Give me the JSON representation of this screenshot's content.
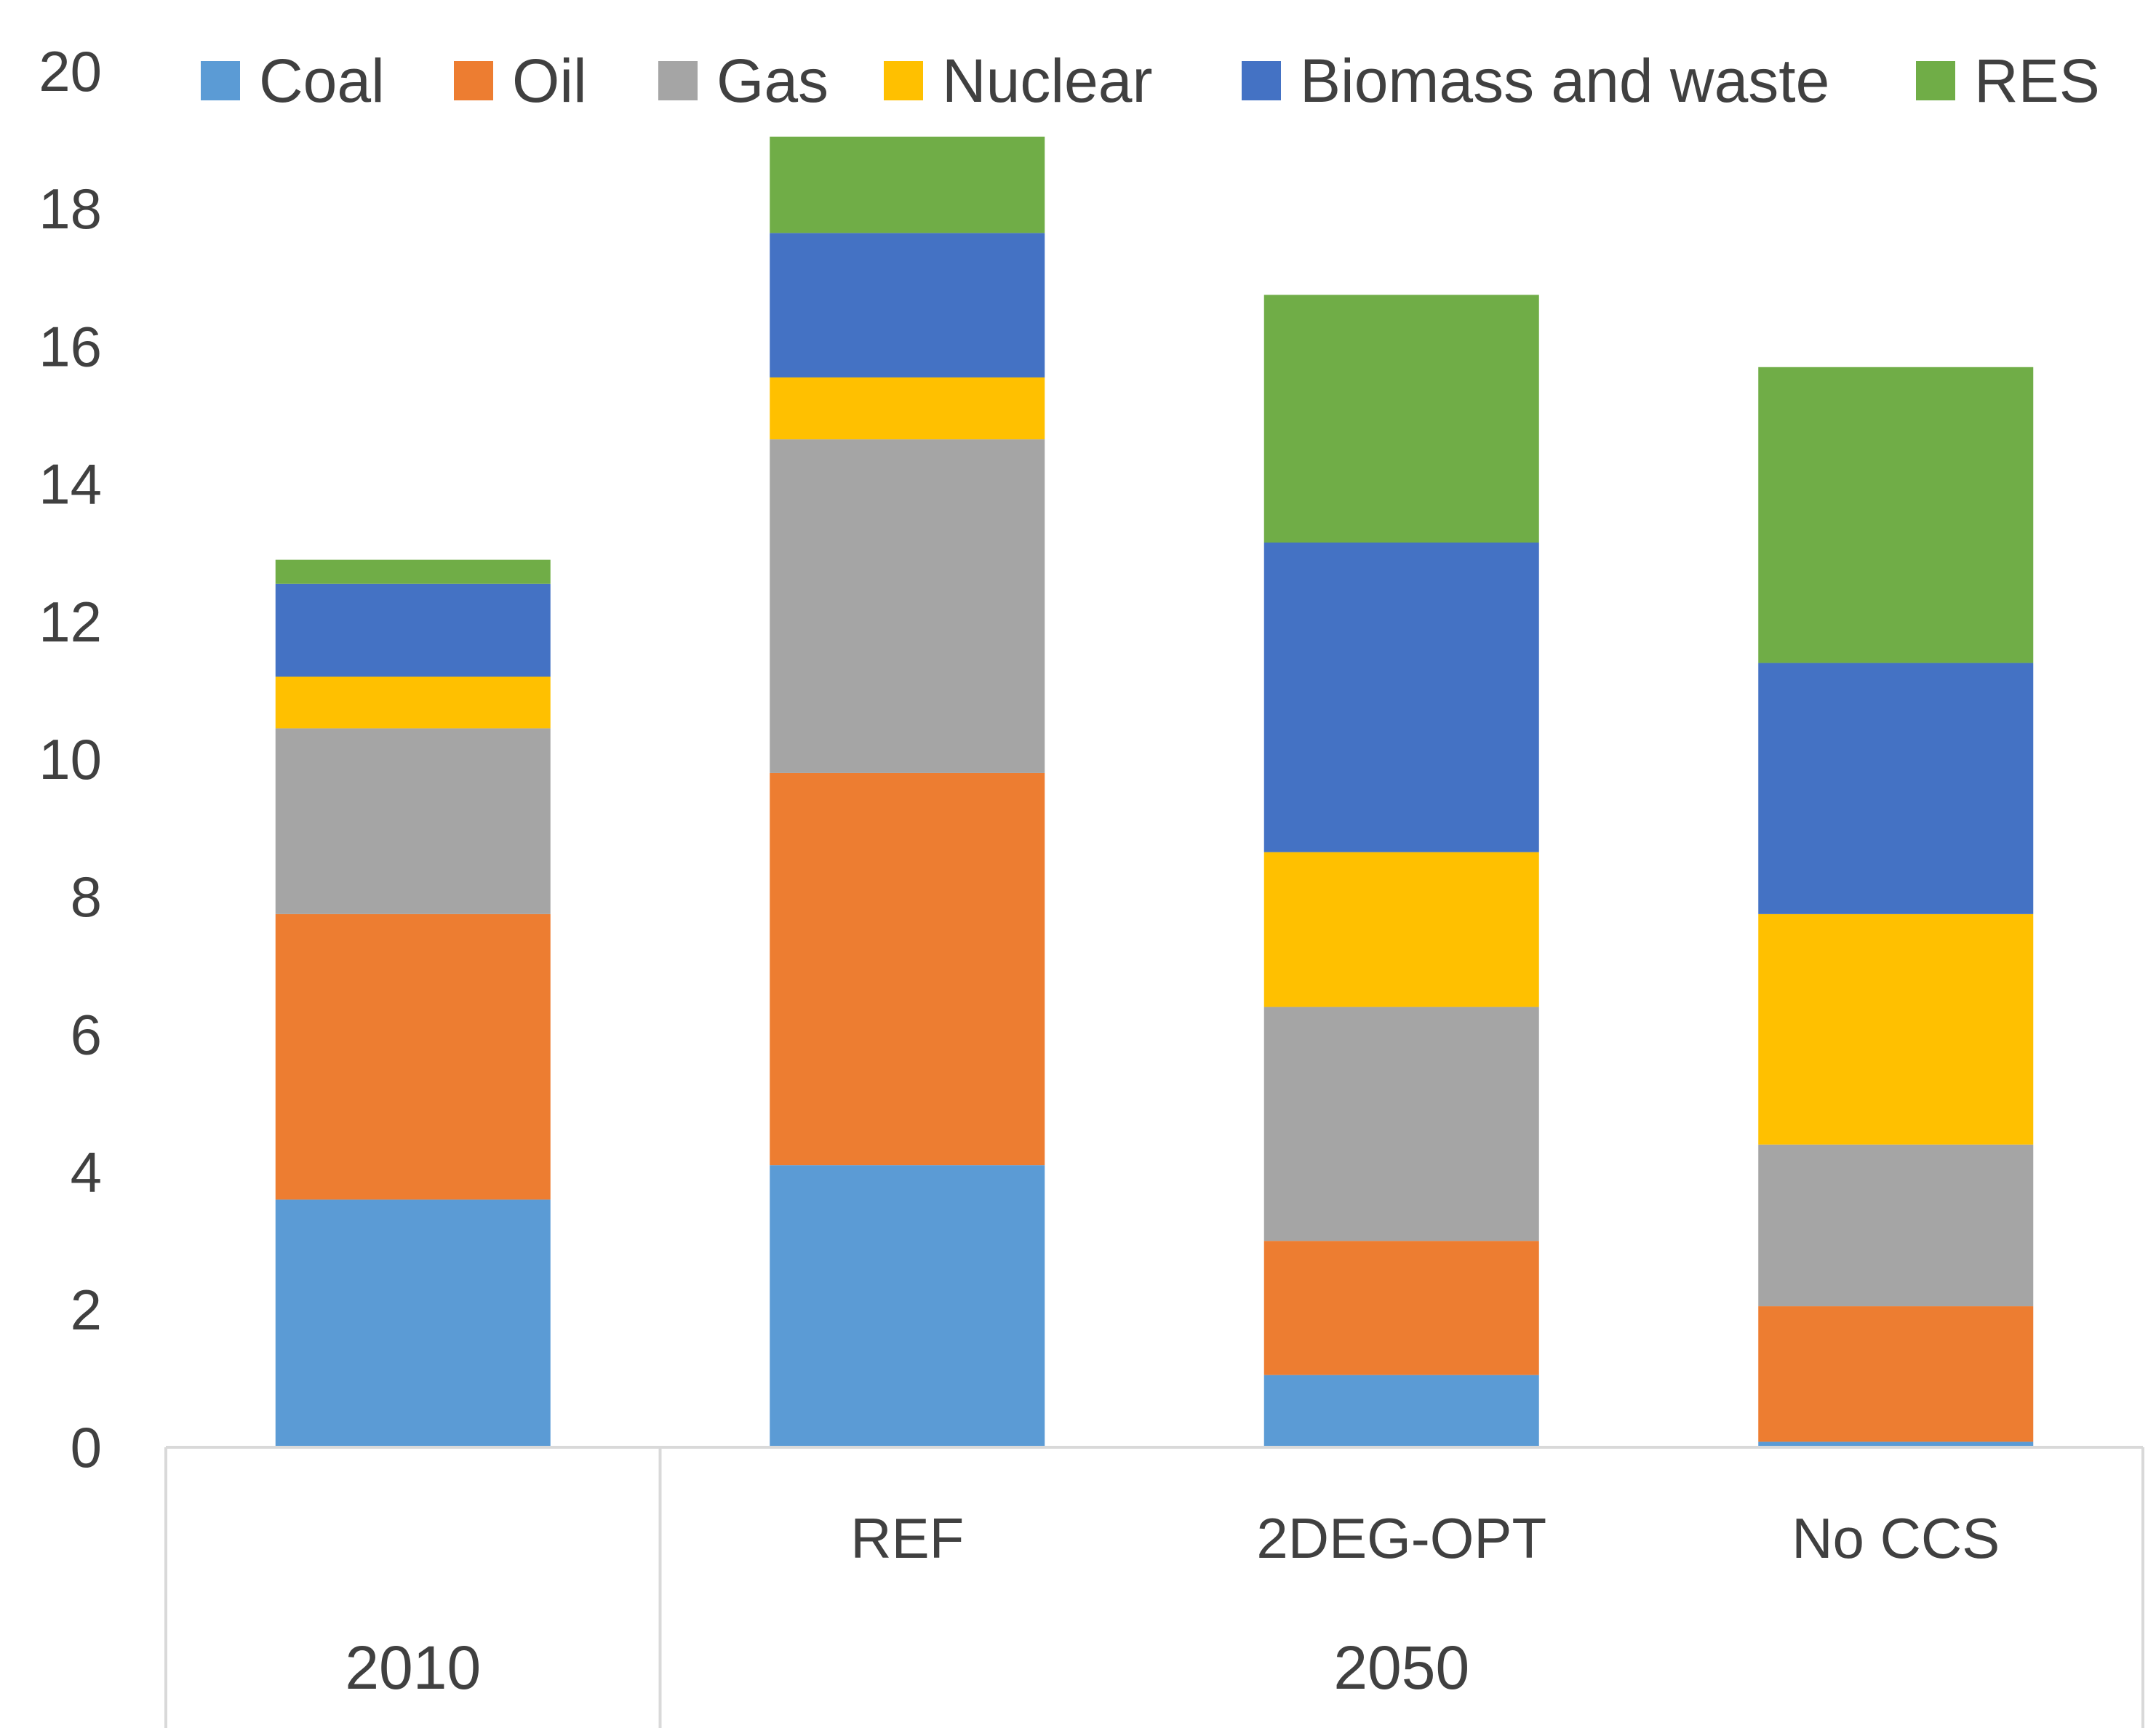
{
  "chart_data": {
    "type": "bar",
    "stacked": true,
    "title": "",
    "xlabel": "",
    "ylabel": "",
    "ylim": [
      0,
      20
    ],
    "yticks": [
      0,
      2,
      4,
      6,
      8,
      10,
      12,
      14,
      16,
      18,
      20
    ],
    "yticks_text": [
      "0",
      "2",
      "4",
      "6",
      "8",
      "10",
      "12",
      "14",
      "16",
      "18",
      "20"
    ],
    "categories": [
      "",
      "REF",
      "2DEG-OPT",
      "No CCS"
    ],
    "groups": [
      {
        "label": "2010",
        "start": 0,
        "end": 0
      },
      {
        "label": "2050",
        "start": 1,
        "end": 3
      }
    ],
    "legend_position": "top",
    "grid": false,
    "series": [
      {
        "name": "Coal",
        "color": "#5B9BD5",
        "values": [
          3.6,
          4.1,
          1.05,
          0.08
        ]
      },
      {
        "name": "Oil",
        "color": "#ED7D31",
        "values": [
          4.15,
          5.7,
          1.95,
          1.97
        ]
      },
      {
        "name": "Gas",
        "color": "#A5A5A5",
        "values": [
          2.7,
          4.85,
          3.4,
          2.35
        ]
      },
      {
        "name": "Nuclear",
        "color": "#FFC000",
        "values": [
          0.75,
          0.9,
          2.25,
          3.35
        ]
      },
      {
        "name": "Biomass and waste",
        "color": "#4472C4",
        "values": [
          1.35,
          2.1,
          4.5,
          3.65
        ]
      },
      {
        "name": "RES",
        "color": "#70AD47",
        "values": [
          0.35,
          1.4,
          3.6,
          4.3
        ]
      }
    ]
  }
}
